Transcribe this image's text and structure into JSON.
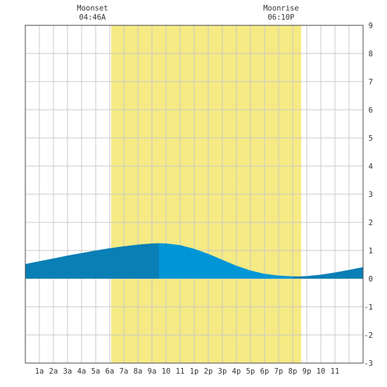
{
  "chart_data": {
    "type": "area",
    "title": "",
    "xlabel": "",
    "ylabel": "",
    "x_tick_labels": [
      "1a",
      "2a",
      "3a",
      "4a",
      "5a",
      "6a",
      "7a",
      "8a",
      "9a",
      "10",
      "11",
      "1p",
      "2p",
      "3p",
      "4p",
      "5p",
      "6p",
      "7p",
      "8p",
      "9p",
      "10",
      "11"
    ],
    "x_range_hours": [
      0,
      24
    ],
    "ylim": [
      -3,
      9
    ],
    "y_ticks": [
      9,
      8,
      7,
      6,
      5,
      4,
      3,
      2,
      1,
      0,
      -1,
      -2,
      -3
    ],
    "grid": true,
    "annotations": [
      {
        "label": "Moonset",
        "time": "04:46A",
        "hour": 4.77
      },
      {
        "label": "Moonrise",
        "time": "06:10P",
        "hour": 18.17
      }
    ],
    "moon_window": {
      "start_hour": 6.1,
      "end_hour": 19.6
    },
    "series": [
      {
        "x": [
          0,
          1,
          2,
          3,
          4,
          5,
          6,
          7,
          8,
          9,
          9.5,
          10,
          11,
          12,
          13,
          14,
          15,
          16,
          17,
          18,
          19,
          19.5,
          20,
          21,
          22,
          23,
          24
        ],
        "values": [
          0.52,
          0.62,
          0.72,
          0.82,
          0.91,
          1.0,
          1.08,
          1.15,
          1.21,
          1.25,
          1.26,
          1.25,
          1.19,
          1.06,
          0.88,
          0.67,
          0.46,
          0.29,
          0.17,
          0.11,
          0.08,
          0.08,
          0.09,
          0.14,
          0.22,
          0.31,
          0.41
        ]
      }
    ],
    "colors": {
      "moon_window": "#f5ea84",
      "tide_dark": "#0a7fb5",
      "tide_light": "#0096d6",
      "grid": "#c8c8c8",
      "frame": "#444444",
      "text": "#333333"
    }
  }
}
